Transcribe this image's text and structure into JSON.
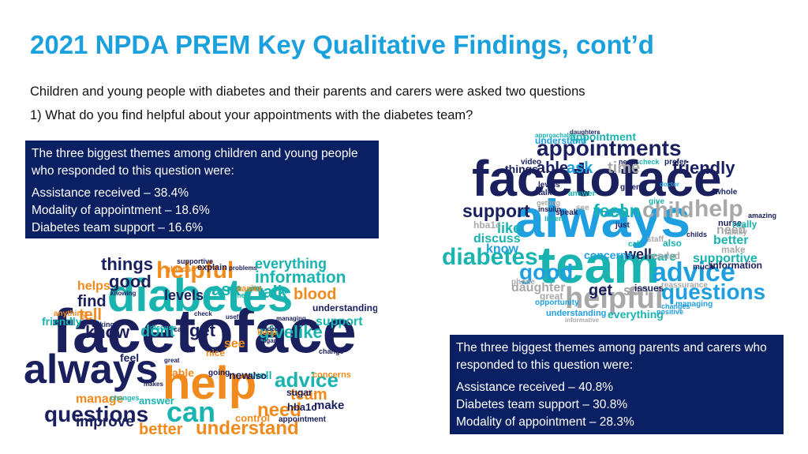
{
  "title": "2021 NPDA PREM Key Qualitative Findings, cont’d",
  "intro": "Children and young people with diabetes and their parents and carers were asked two questions",
  "question": "1) What do you find helpful about your appointments with the diabetes team?",
  "cyp_box": {
    "heading": "The three biggest themes among children and young people who responded to this question were:",
    "items": [
      "Assistance received – 38.4%",
      "Modality of appointment – 18.6%",
      "Diabetes team support – 16.6%"
    ]
  },
  "parent_box": {
    "heading": "The three biggest themes among parents and carers who responded to this question were:",
    "items": [
      "Assistance received – 40.8%",
      "Diabetes team support – 30.8%",
      "Modality of appointment – 28.3%"
    ]
  },
  "colors": {
    "title": "#1aa0dd",
    "box": "#0b1f63",
    "navy": "#1a1f5e",
    "orange": "#f08a1c",
    "teal": "#19b3b0",
    "blue": "#1f9fe0",
    "grey": "#a8a8a8"
  },
  "cloud_cyp": {
    "words": [
      {
        "t": "facetoface",
        "c": "navy"
      },
      {
        "t": "diabetes",
        "c": "teal"
      },
      {
        "t": "always",
        "c": "navy"
      },
      {
        "t": "help",
        "c": "orange"
      },
      {
        "t": "helpful",
        "c": "orange"
      },
      {
        "t": "can",
        "c": "teal"
      },
      {
        "t": "questions",
        "c": "navy"
      },
      {
        "t": "understand",
        "c": "orange"
      },
      {
        "t": "advice",
        "c": "teal"
      },
      {
        "t": "things",
        "c": "navy"
      },
      {
        "t": "good",
        "c": "navy"
      },
      {
        "t": "information",
        "c": "teal"
      },
      {
        "t": "everything",
        "c": "teal"
      },
      {
        "t": "talk",
        "c": "teal"
      },
      {
        "t": "blood",
        "c": "orange"
      },
      {
        "t": "ask",
        "c": "teal"
      },
      {
        "t": "find",
        "c": "navy"
      },
      {
        "t": "levels",
        "c": "navy"
      },
      {
        "t": "helps",
        "c": "orange"
      },
      {
        "t": "tell",
        "c": "orange"
      },
      {
        "t": "know",
        "c": "navy"
      },
      {
        "t": "dont",
        "c": "teal"
      },
      {
        "t": "get",
        "c": "navy"
      },
      {
        "t": "givelike",
        "c": "teal"
      },
      {
        "t": "support",
        "c": "teal"
      },
      {
        "t": "understanding",
        "c": "navy"
      },
      {
        "t": "friendly",
        "c": "teal"
      },
      {
        "t": "anything",
        "c": "orange"
      },
      {
        "t": "need",
        "c": "orange"
      },
      {
        "t": "team",
        "c": "orange"
      },
      {
        "t": "make",
        "c": "navy"
      },
      {
        "t": "improve",
        "c": "navy"
      },
      {
        "t": "better",
        "c": "orange"
      },
      {
        "t": "manage",
        "c": "orange"
      },
      {
        "t": "answer",
        "c": "teal"
      },
      {
        "t": "sugar",
        "c": "navy"
      },
      {
        "t": "control",
        "c": "orange"
      },
      {
        "t": "appointment",
        "c": "navy"
      },
      {
        "t": "new",
        "c": "navy"
      },
      {
        "t": "well",
        "c": "teal"
      },
      {
        "t": "concerns",
        "c": "orange"
      },
      {
        "t": "feel",
        "c": "navy"
      },
      {
        "t": "able",
        "c": "orange"
      },
      {
        "t": "going",
        "c": "navy"
      },
      {
        "t": "keep",
        "c": "orange"
      },
      {
        "t": "hba1c",
        "c": "navy"
      },
      {
        "t": "explain",
        "c": "navy"
      },
      {
        "t": "supportive",
        "c": "navy"
      },
      {
        "t": "glucose",
        "c": "orange"
      },
      {
        "t": "problems",
        "c": "navy"
      },
      {
        "t": "easier",
        "c": "orange"
      },
      {
        "t": "time",
        "c": "teal"
      },
      {
        "t": "knowing",
        "c": "navy"
      },
      {
        "t": "check",
        "c": "navy"
      },
      {
        "t": "managing",
        "c": "navy"
      },
      {
        "t": "useful",
        "c": "navy"
      },
      {
        "t": "talking",
        "c": "navy"
      },
      {
        "t": "discuss",
        "c": "teal"
      },
      {
        "t": "care",
        "c": "navy"
      },
      {
        "t": "video",
        "c": "navy"
      },
      {
        "t": "sugars",
        "c": "navy"
      },
      {
        "t": "see",
        "c": "orange"
      },
      {
        "t": "also",
        "c": "navy"
      },
      {
        "t": "nice",
        "c": "orange"
      },
      {
        "t": "change",
        "c": "navy"
      },
      {
        "t": "changes",
        "c": "teal"
      },
      {
        "t": "makes",
        "c": "navy"
      },
      {
        "t": "great",
        "c": "navy"
      }
    ]
  },
  "cloud_parent": {
    "words": [
      {
        "t": "facetoface",
        "c": "navy"
      },
      {
        "t": "always",
        "c": "blue"
      },
      {
        "t": "team",
        "c": "teal"
      },
      {
        "t": "helpful",
        "c": "grey"
      },
      {
        "t": "appointments",
        "c": "navy"
      },
      {
        "t": "advice",
        "c": "blue"
      },
      {
        "t": "questions",
        "c": "blue"
      },
      {
        "t": "diabetes",
        "c": "teal"
      },
      {
        "t": "support",
        "c": "navy"
      },
      {
        "t": "feel",
        "c": "teal"
      },
      {
        "t": "can",
        "c": "teal"
      },
      {
        "t": "child",
        "c": "grey"
      },
      {
        "t": "help",
        "c": "grey"
      },
      {
        "t": "friendly",
        "c": "navy"
      },
      {
        "t": "things",
        "c": "navy"
      },
      {
        "t": "able",
        "c": "navy"
      },
      {
        "t": "ask",
        "c": "blue"
      },
      {
        "t": "time",
        "c": "grey"
      },
      {
        "t": "good",
        "c": "blue"
      },
      {
        "t": "get",
        "c": "navy"
      },
      {
        "t": "son",
        "c": "grey"
      },
      {
        "t": "care",
        "c": "teal"
      },
      {
        "t": "supportive",
        "c": "teal"
      },
      {
        "t": "information",
        "c": "navy"
      },
      {
        "t": "better",
        "c": "teal"
      },
      {
        "t": "need",
        "c": "grey"
      },
      {
        "t": "make",
        "c": "grey"
      },
      {
        "t": "nurse",
        "c": "navy"
      },
      {
        "t": "family",
        "c": "grey"
      },
      {
        "t": "really",
        "c": "teal"
      },
      {
        "t": "well",
        "c": "navy"
      },
      {
        "t": "concerns",
        "c": "blue"
      },
      {
        "t": "needed",
        "c": "grey"
      },
      {
        "t": "discuss",
        "c": "teal"
      },
      {
        "t": "know",
        "c": "blue"
      },
      {
        "t": "like",
        "c": "teal"
      },
      {
        "t": "hba1c",
        "c": "grey"
      },
      {
        "t": "daughter",
        "c": "grey"
      },
      {
        "t": "great",
        "c": "grey"
      },
      {
        "t": "issues",
        "c": "navy"
      },
      {
        "t": "reassurance",
        "c": "grey"
      },
      {
        "t": "managing",
        "c": "blue"
      },
      {
        "t": "changes",
        "c": "blue"
      },
      {
        "t": "positive",
        "c": "blue"
      },
      {
        "t": "everything",
        "c": "teal"
      },
      {
        "t": "understanding",
        "c": "blue"
      },
      {
        "t": "opportunity",
        "c": "blue"
      },
      {
        "t": "informative",
        "c": "grey"
      },
      {
        "t": "understand",
        "c": "blue"
      },
      {
        "t": "appointment",
        "c": "teal"
      },
      {
        "t": "daughters",
        "c": "navy"
      },
      {
        "t": "approachable",
        "c": "teal"
      },
      {
        "t": "video",
        "c": "navy"
      },
      {
        "t": "needs",
        "c": "navy"
      },
      {
        "t": "check",
        "c": "teal"
      },
      {
        "t": "prefer",
        "c": "navy"
      },
      {
        "t": "levels",
        "c": "navy"
      },
      {
        "t": "talk",
        "c": "navy"
      },
      {
        "t": "given",
        "c": "navy"
      },
      {
        "t": "doctor",
        "c": "blue"
      },
      {
        "t": "whole",
        "c": "navy"
      },
      {
        "t": "answer",
        "c": "teal"
      },
      {
        "t": "give",
        "c": "teal"
      },
      {
        "t": "amazing",
        "c": "navy"
      },
      {
        "t": "speak",
        "c": "navy"
      },
      {
        "t": "just",
        "c": "navy"
      },
      {
        "t": "call",
        "c": "teal"
      },
      {
        "t": "also",
        "c": "teal"
      },
      {
        "t": "much",
        "c": "navy"
      },
      {
        "t": "phone",
        "c": "grey"
      },
      {
        "t": "childs",
        "c": "navy"
      },
      {
        "t": "getting",
        "c": "grey"
      },
      {
        "t": "insulin",
        "c": "navy"
      },
      {
        "t": "listen",
        "c": "teal"
      },
      {
        "t": "staff",
        "c": "grey"
      },
      {
        "t": "see",
        "c": "grey"
      }
    ]
  }
}
